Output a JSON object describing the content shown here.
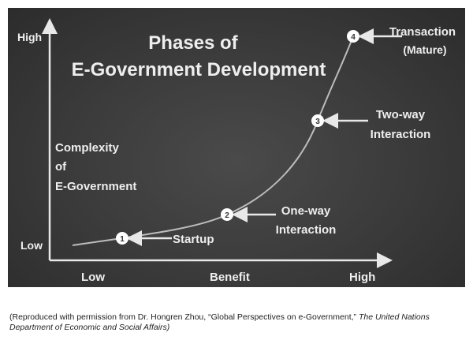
{
  "title_line1": "Phases of",
  "title_line2": "E-Government Development",
  "y_axis": {
    "label_lines": [
      "Complexity",
      "of",
      "E-Government"
    ],
    "high": "High",
    "low": "Low"
  },
  "x_axis": {
    "label": "Benefit",
    "low": "Low",
    "high": "High"
  },
  "phases": [
    {
      "number": "1",
      "label_lines": [
        "Startup"
      ]
    },
    {
      "number": "2",
      "label_lines": [
        "One-way",
        "Interaction"
      ]
    },
    {
      "number": "3",
      "label_lines": [
        "Two-way",
        "Interaction"
      ]
    },
    {
      "number": "4",
      "label_lines": [
        "Transaction",
        "(Mature)"
      ]
    }
  ],
  "caption": {
    "text": "(Reproduced with permission from Dr. Hongren Zhou, “Global Perspectives on e-Government,” ",
    "italic": "The United Nations Department of Economic and Social Affairs)"
  },
  "colors": {
    "background": "#3a3a3a",
    "foreground": "#eeeeee"
  }
}
